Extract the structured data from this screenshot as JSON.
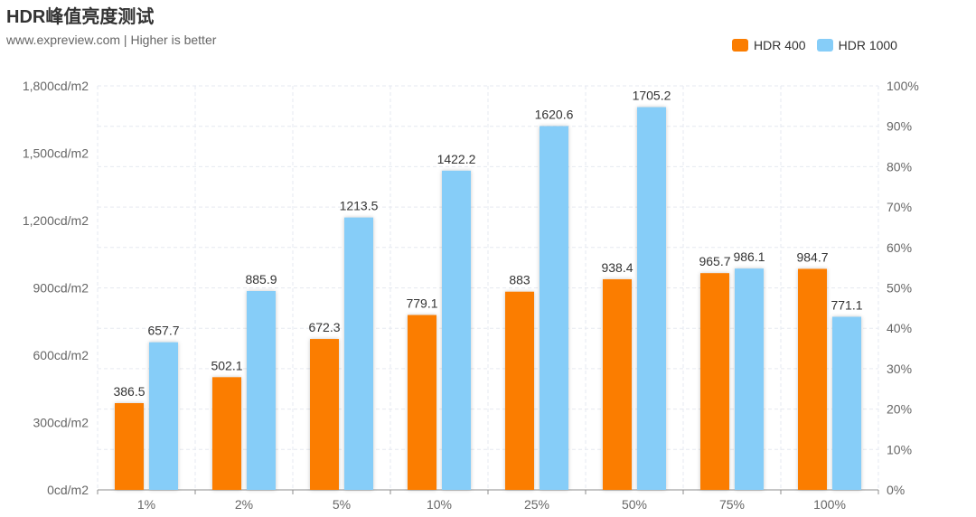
{
  "title": "HDR峰值亮度测试",
  "subtitle": "www.expreview.com | Higher is better",
  "colors": {
    "series_1": "#fb7d00",
    "series_2": "#86cdf8",
    "grid": "#e6e9f0",
    "axis_text": "#666666",
    "label_text": "#333333"
  },
  "chart_data": {
    "type": "bar",
    "title": "HDR峰值亮度测试",
    "subtitle": "www.expreview.com | Higher is better",
    "categories": [
      "1%",
      "2%",
      "5%",
      "10%",
      "25%",
      "50%",
      "75%",
      "100%"
    ],
    "series": [
      {
        "name": "HDR 400",
        "values": [
          386.5,
          502.1,
          672.3,
          779.1,
          883,
          938.4,
          965.7,
          984.7
        ]
      },
      {
        "name": "HDR 1000",
        "values": [
          657.7,
          885.9,
          1213.5,
          1422.2,
          1620.6,
          1705.2,
          986.1,
          771.1
        ]
      }
    ],
    "xlabel": "",
    "ylabel": "",
    "ylim": [
      0,
      1800
    ],
    "y_ticks": [
      "0cd/m2",
      "300cd/m2",
      "600cd/m2",
      "900cd/m2",
      "1,200cd/m2",
      "1,500cd/m2",
      "1,800cd/m2"
    ],
    "y2_ticks": [
      "0%",
      "10%",
      "20%",
      "30%",
      "40%",
      "50%",
      "60%",
      "70%",
      "80%",
      "90%",
      "100%"
    ],
    "y2lim": [
      0,
      100
    ],
    "legend_position": "top-right",
    "grid": true
  }
}
